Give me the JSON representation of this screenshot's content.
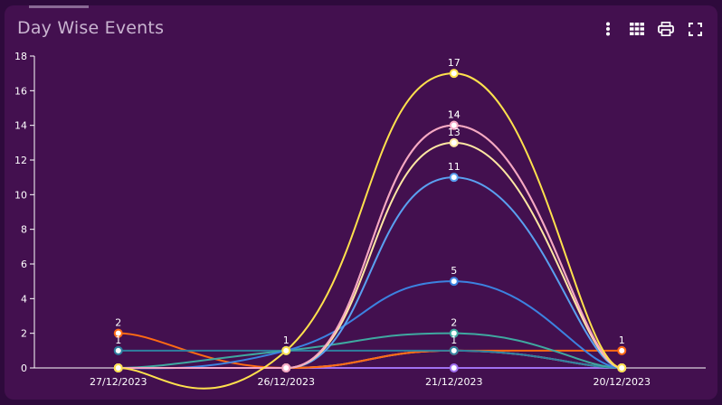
{
  "header": {
    "title": "Day Wise Events"
  },
  "toolbar": {
    "items": [
      {
        "icon": "more-vertical-icon"
      },
      {
        "icon": "table-grid-icon"
      },
      {
        "icon": "print-icon"
      },
      {
        "icon": "fullscreen-icon"
      }
    ]
  },
  "colors": {
    "page_bg": "#2e0a3c",
    "panel_bg": "#43104f",
    "axis": "#ffffff"
  },
  "chart_data": {
    "type": "line",
    "title": "Day Wise Events",
    "xlabel": "",
    "ylabel": "",
    "categories": [
      "27/12/2023",
      "26/12/2023",
      "21/12/2023",
      "20/12/2023"
    ],
    "ylim": [
      0,
      18
    ],
    "yticks": [
      0,
      2,
      4,
      6,
      8,
      10,
      12,
      14,
      16,
      18
    ],
    "smooth": true,
    "grid": false,
    "legend": "none",
    "series": [
      {
        "color": "#ffe14d",
        "values": [
          0,
          1,
          17,
          0
        ],
        "labels": [
          "",
          "",
          "17",
          ""
        ]
      },
      {
        "color": "#f4a6c7",
        "values": [
          0,
          0,
          14,
          0
        ],
        "labels": [
          "",
          "",
          "14",
          ""
        ]
      },
      {
        "color": "#ffd966",
        "values": [
          0,
          0,
          14,
          0
        ],
        "labels": [
          "",
          "",
          "14",
          ""
        ]
      },
      {
        "color": "#ffe8a3",
        "values": [
          0,
          0,
          13,
          0
        ],
        "labels": [
          "",
          "",
          "13",
          ""
        ]
      },
      {
        "color": "#5aa0f0",
        "values": [
          0,
          0,
          11,
          0
        ],
        "labels": [
          "",
          "",
          "11",
          ""
        ]
      },
      {
        "color": "#3c82e0",
        "values": [
          0,
          1,
          5,
          0
        ],
        "labels": [
          "",
          "",
          "5",
          ""
        ]
      },
      {
        "color": "#3fa8a0",
        "values": [
          0,
          1,
          2,
          0
        ],
        "labels": [
          "",
          "",
          "2",
          ""
        ]
      },
      {
        "color": "#2f7fa0",
        "values": [
          1,
          1,
          1,
          0
        ],
        "labels": [
          "1",
          "1",
          "1",
          ""
        ]
      },
      {
        "color": "#ff6a13",
        "values": [
          2,
          0,
          1,
          1
        ],
        "labels": [
          "2",
          "",
          "",
          "1"
        ]
      },
      {
        "color": "#f2e6a0",
        "values": [
          0,
          0,
          1,
          0
        ],
        "labels": [
          "",
          "",
          "",
          ""
        ]
      },
      {
        "color": "#a070f0",
        "values": [
          0,
          0,
          0,
          0
        ],
        "labels": [
          "",
          "",
          "",
          ""
        ]
      }
    ]
  }
}
